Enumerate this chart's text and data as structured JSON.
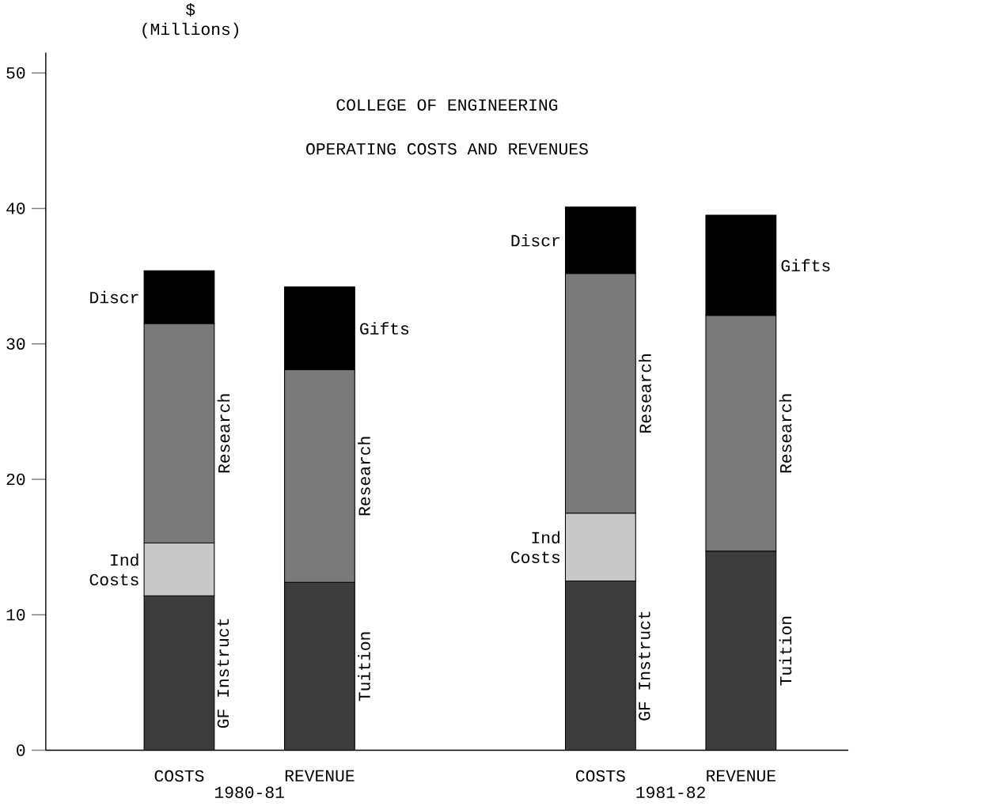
{
  "chart_data": {
    "type": "bar",
    "title": "COLLEGE OF ENGINEERING",
    "subtitle": "OPERATING COSTS AND REVENUES",
    "ylabel": "$ (Millions)",
    "categories": [
      "COSTS",
      "REVENUE",
      null,
      "COSTS",
      "REVENUE"
    ],
    "stacked": true,
    "ylim": [
      0,
      51.5
    ],
    "yticks": [
      0,
      10,
      20,
      30,
      40,
      50
    ],
    "series": [
      {
        "name": "GF Instruct",
        "color": "#3c3c3c",
        "values": [
          11.4,
          null,
          null,
          12.5,
          null
        ]
      },
      {
        "name": "Tuition",
        "color": "#3c3c3c",
        "values": [
          null,
          12.4,
          null,
          null,
          14.7
        ]
      },
      {
        "name": "Ind Costs",
        "color": "#c8c8c8",
        "values": [
          3.9,
          null,
          null,
          5.0,
          null
        ]
      },
      {
        "name": "Research",
        "color": "#7a7a7a",
        "values": [
          16.2,
          null,
          null,
          17.7,
          null
        ]
      },
      {
        "name": "Research",
        "color": "#7a7a7a",
        "values": [
          null,
          15.7,
          null,
          null,
          17.4
        ]
      },
      {
        "name": "Discr",
        "color": "#000000",
        "values": [
          3.9,
          null,
          null,
          4.9,
          null
        ]
      },
      {
        "name": "Gifts",
        "color": "#000000",
        "values": [
          null,
          6.1,
          null,
          null,
          7.4
        ]
      }
    ],
    "annotations": [
      "1980-81",
      "1981-82"
    ]
  }
}
